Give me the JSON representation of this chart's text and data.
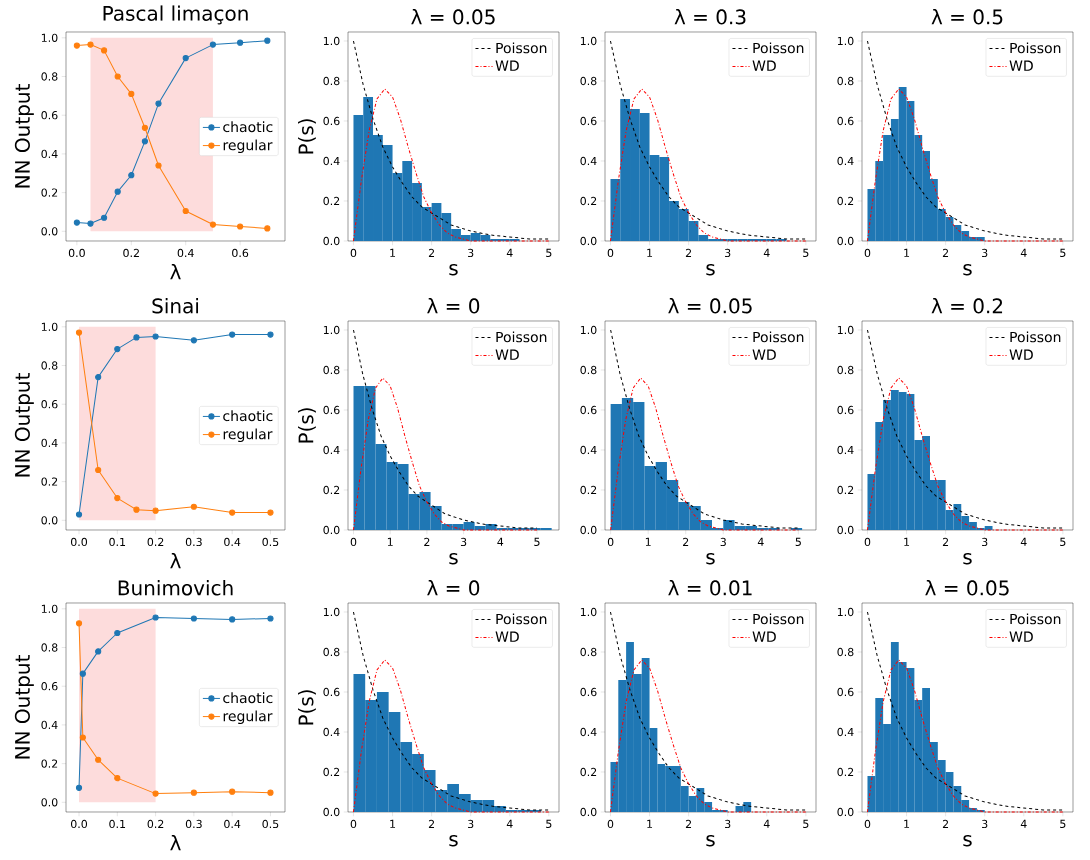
{
  "chart_data": [
    {
      "type": "line",
      "title": "Pascal limaçon",
      "xlabel": "λ",
      "ylabel": "NN Output",
      "x": [
        0,
        0.05,
        0.1,
        0.15,
        0.2,
        0.25,
        0.3,
        0.4,
        0.5,
        0.6,
        0.7
      ],
      "marker": "circle",
      "line_style": "solid",
      "legend": "center right",
      "series": [
        {
          "name": "chaotic",
          "color": "#1f77b4",
          "values": [
            0.045,
            0.04,
            0.07,
            0.205,
            0.29,
            0.465,
            0.66,
            0.895,
            0.965,
            0.975,
            0.985
          ]
        },
        {
          "name": "regular",
          "color": "#ff7f0e",
          "values": [
            0.96,
            0.965,
            0.935,
            0.8,
            0.71,
            0.535,
            0.34,
            0.105,
            0.035,
            0.025,
            0.015
          ]
        }
      ],
      "bands": [
        {
          "axis": "x",
          "from": 0.05,
          "to": 0.5,
          "color": "#fddcdc"
        }
      ],
      "xlim": [
        -0.04,
        0.765
      ],
      "ylim": [
        -0.05,
        1.03
      ],
      "xticks": [
        {
          "value": 0,
          "label": "0.0"
        },
        {
          "value": 0.2,
          "label": "0.2"
        },
        {
          "value": 0.4,
          "label": "0.4"
        },
        {
          "value": 0.6,
          "label": "0.6"
        }
      ],
      "yticks": [
        {
          "value": 0,
          "label": "0.0"
        },
        {
          "value": 0.2,
          "label": "0.2"
        },
        {
          "value": 0.4,
          "label": "0.4"
        },
        {
          "value": 0.6,
          "label": "0.6"
        },
        {
          "value": 0.8,
          "label": "0.8"
        },
        {
          "value": 1,
          "label": "1.0"
        }
      ]
    },
    {
      "type": "histogram",
      "title": "λ = 0.05",
      "xlabel": "s",
      "ylabel": "P(s)",
      "bins": [
        0,
        0.25,
        0.5,
        0.75,
        1,
        1.25,
        1.5,
        1.75,
        2,
        2.25,
        2.5,
        2.75,
        3,
        3.25,
        3.5,
        3.75,
        4,
        4.25
      ],
      "values": [
        0.63,
        0.72,
        0.53,
        0.48,
        0.34,
        0.4,
        0.29,
        0.17,
        0.19,
        0.14,
        0.06,
        0.03,
        0.04,
        0.03,
        0.01,
        0.01,
        0.01
      ],
      "color": "#1f77b4",
      "legend": "top right",
      "series": [
        {
          "type": "line",
          "name": "Poisson",
          "color": "#000000",
          "line_style": "dashed",
          "x": [
            0,
            0.25,
            0.5,
            0.75,
            1,
            1.25,
            1.5,
            1.75,
            2,
            2.5,
            3,
            3.5,
            4,
            4.5,
            5
          ],
          "values": [
            1,
            0.78,
            0.61,
            0.47,
            0.37,
            0.29,
            0.22,
            0.17,
            0.14,
            0.08,
            0.05,
            0.03,
            0.02,
            0.01,
            0.01
          ]
        },
        {
          "type": "line",
          "name": "WD",
          "color": "#ff0000",
          "line_style": "dashdot",
          "x": [
            0,
            0.2,
            0.4,
            0.6,
            0.8,
            1,
            1.2,
            1.4,
            1.6,
            1.8,
            2,
            2.2,
            2.4,
            2.6,
            2.8,
            3,
            3.5,
            4,
            5
          ],
          "values": [
            0,
            0.3,
            0.55,
            0.71,
            0.76,
            0.72,
            0.61,
            0.47,
            0.34,
            0.22,
            0.14,
            0.08,
            0.04,
            0.02,
            0.01,
            0,
            0,
            0,
            0
          ]
        }
      ],
      "xlim": [
        -0.14,
        5.26
      ],
      "ylim": [
        0,
        1.045
      ],
      "xticks": [
        0,
        1,
        2,
        3,
        4,
        5
      ],
      "yticks": [
        {
          "value": 0,
          "label": "0.0"
        },
        {
          "value": 0.2,
          "label": "0.2"
        },
        {
          "value": 0.4,
          "label": "0.4"
        },
        {
          "value": 0.6,
          "label": "0.6"
        },
        {
          "value": 0.8,
          "label": "0.8"
        },
        {
          "value": 1,
          "label": "1.0"
        }
      ]
    },
    {
      "type": "histogram",
      "title": "λ = 0.3",
      "xlabel": "s",
      "bins": [
        0,
        0.25,
        0.5,
        0.75,
        1,
        1.25,
        1.5,
        1.75,
        2,
        2.25,
        2.5,
        2.75,
        3,
        3.25,
        3.5,
        3.75,
        4,
        4.25,
        4.5
      ],
      "values": [
        0.31,
        0.71,
        0.66,
        0.64,
        0.43,
        0.42,
        0.2,
        0.16,
        0.1,
        0.03,
        0.01,
        0.01,
        0.01,
        0.01,
        0.01,
        0.01,
        0.01,
        0.01
      ],
      "color": "#1f77b4",
      "legend": "top right",
      "series": [
        {
          "type": "line",
          "name": "Poisson",
          "color": "#000000",
          "line_style": "dashed",
          "x": [
            0,
            0.25,
            0.5,
            0.75,
            1,
            1.25,
            1.5,
            1.75,
            2,
            2.5,
            3,
            3.5,
            4,
            4.5,
            5
          ],
          "values": [
            1,
            0.78,
            0.61,
            0.47,
            0.37,
            0.29,
            0.22,
            0.17,
            0.14,
            0.08,
            0.05,
            0.03,
            0.02,
            0.01,
            0.01
          ]
        },
        {
          "type": "line",
          "name": "WD",
          "color": "#ff0000",
          "line_style": "dashdot",
          "x": [
            0,
            0.2,
            0.4,
            0.6,
            0.8,
            1,
            1.2,
            1.4,
            1.6,
            1.8,
            2,
            2.2,
            2.4,
            2.6,
            2.8,
            3,
            3.5,
            4,
            5
          ],
          "values": [
            0,
            0.3,
            0.55,
            0.71,
            0.76,
            0.72,
            0.61,
            0.47,
            0.34,
            0.22,
            0.14,
            0.08,
            0.04,
            0.02,
            0.01,
            0,
            0,
            0,
            0
          ]
        }
      ],
      "xlim": [
        -0.14,
        5.26
      ],
      "ylim": [
        0,
        1.045
      ],
      "xticks": [
        0,
        1,
        2,
        3,
        4,
        5
      ],
      "yticks": [
        {
          "value": 0,
          "label": "0.0"
        },
        {
          "value": 0.2,
          "label": "0.2"
        },
        {
          "value": 0.4,
          "label": "0.4"
        },
        {
          "value": 0.6,
          "label": "0.6"
        },
        {
          "value": 0.8,
          "label": "0.8"
        },
        {
          "value": 1,
          "label": "1.0"
        }
      ]
    },
    {
      "type": "histogram",
      "title": "λ = 0.5",
      "xlabel": "s",
      "bins": [
        0,
        0.2,
        0.4,
        0.6,
        0.8,
        1,
        1.2,
        1.4,
        1.6,
        1.8,
        2,
        2.2,
        2.4,
        2.6,
        2.8,
        3
      ],
      "values": [
        0.26,
        0.4,
        0.53,
        0.61,
        0.77,
        0.7,
        0.53,
        0.45,
        0.31,
        0.16,
        0.12,
        0.08,
        0.05,
        0.02,
        0.02
      ],
      "color": "#1f77b4",
      "legend": "top right",
      "series": [
        {
          "type": "line",
          "name": "Poisson",
          "color": "#000000",
          "line_style": "dashed",
          "x": [
            0,
            0.25,
            0.5,
            0.75,
            1,
            1.25,
            1.5,
            1.75,
            2,
            2.5,
            3,
            3.5,
            4,
            4.5,
            5
          ],
          "values": [
            1,
            0.78,
            0.61,
            0.47,
            0.37,
            0.29,
            0.22,
            0.17,
            0.14,
            0.08,
            0.05,
            0.03,
            0.02,
            0.01,
            0.01
          ]
        },
        {
          "type": "line",
          "name": "WD",
          "color": "#ff0000",
          "line_style": "dashdot",
          "x": [
            0,
            0.2,
            0.4,
            0.6,
            0.8,
            1,
            1.2,
            1.4,
            1.6,
            1.8,
            2,
            2.2,
            2.4,
            2.6,
            2.8,
            3,
            3.5,
            4,
            5
          ],
          "values": [
            0,
            0.3,
            0.55,
            0.71,
            0.76,
            0.72,
            0.61,
            0.47,
            0.34,
            0.22,
            0.14,
            0.08,
            0.04,
            0.02,
            0.01,
            0,
            0,
            0,
            0
          ]
        }
      ],
      "xlim": [
        -0.14,
        5.26
      ],
      "ylim": [
        0,
        1.045
      ],
      "xticks": [
        0,
        1,
        2,
        3,
        4,
        5
      ],
      "yticks": [
        {
          "value": 0,
          "label": "0.0"
        },
        {
          "value": 0.2,
          "label": "0.2"
        },
        {
          "value": 0.4,
          "label": "0.4"
        },
        {
          "value": 0.6,
          "label": "0.6"
        },
        {
          "value": 0.8,
          "label": "0.8"
        },
        {
          "value": 1,
          "label": "1.0"
        }
      ]
    },
    {
      "type": "line",
      "title": "Sinai",
      "xlabel": "λ",
      "ylabel": "NN Output",
      "x": [
        0,
        0.05,
        0.1,
        0.15,
        0.2,
        0.3,
        0.4,
        0.5
      ],
      "marker": "circle",
      "line_style": "solid",
      "legend": "center right",
      "series": [
        {
          "name": "chaotic",
          "color": "#1f77b4",
          "values": [
            0.03,
            0.74,
            0.885,
            0.945,
            0.95,
            0.93,
            0.96,
            0.96
          ]
        },
        {
          "name": "regular",
          "color": "#ff7f0e",
          "values": [
            0.97,
            0.26,
            0.115,
            0.055,
            0.05,
            0.07,
            0.04,
            0.04
          ]
        }
      ],
      "bands": [
        {
          "axis": "x",
          "from": 0,
          "to": 0.2,
          "color": "#fddcdc"
        }
      ],
      "xlim": [
        -0.034,
        0.538
      ],
      "ylim": [
        -0.05,
        1.03
      ],
      "xticks": [
        {
          "value": 0,
          "label": "0.0"
        },
        {
          "value": 0.1,
          "label": "0.1"
        },
        {
          "value": 0.2,
          "label": "0.2"
        },
        {
          "value": 0.3,
          "label": "0.3"
        },
        {
          "value": 0.4,
          "label": "0.4"
        },
        {
          "value": 0.5,
          "label": "0.5"
        }
      ],
      "yticks": [
        {
          "value": 0,
          "label": "0.0"
        },
        {
          "value": 0.2,
          "label": "0.2"
        },
        {
          "value": 0.4,
          "label": "0.4"
        },
        {
          "value": 0.6,
          "label": "0.6"
        },
        {
          "value": 0.8,
          "label": "0.8"
        },
        {
          "value": 1,
          "label": "1.0"
        }
      ]
    },
    {
      "type": "histogram",
      "title": "λ = 0",
      "xlabel": "s",
      "ylabel": "P(s)",
      "bins": [
        0,
        0.3,
        0.6,
        0.9,
        1.2,
        1.5,
        1.8,
        2.1,
        2.4,
        2.7,
        3,
        3.3,
        3.6,
        3.9,
        4.2,
        4.5,
        4.8,
        5.1,
        5.4
      ],
      "values": [
        0.72,
        0.72,
        0.43,
        0.34,
        0.33,
        0.18,
        0.19,
        0.12,
        0.03,
        0.03,
        0.04,
        0.02,
        0.03,
        0.01,
        0.01,
        0.01,
        0.01,
        0.01
      ],
      "color": "#1f77b4",
      "legend": "top right",
      "series": [
        {
          "type": "line",
          "name": "Poisson",
          "color": "#000000",
          "line_style": "dashed",
          "x": [
            0,
            0.25,
            0.5,
            0.75,
            1,
            1.25,
            1.5,
            1.75,
            2,
            2.5,
            3,
            3.5,
            4,
            4.5,
            5
          ],
          "values": [
            1,
            0.78,
            0.61,
            0.47,
            0.37,
            0.29,
            0.22,
            0.17,
            0.14,
            0.08,
            0.05,
            0.03,
            0.02,
            0.01,
            0.01
          ]
        },
        {
          "type": "line",
          "name": "WD",
          "color": "#ff0000",
          "line_style": "dashdot",
          "x": [
            0,
            0.2,
            0.4,
            0.6,
            0.8,
            1,
            1.2,
            1.4,
            1.6,
            1.8,
            2,
            2.2,
            2.4,
            2.6,
            2.8,
            3,
            3.5,
            4,
            5
          ],
          "values": [
            0,
            0.3,
            0.55,
            0.71,
            0.76,
            0.72,
            0.61,
            0.47,
            0.34,
            0.22,
            0.14,
            0.08,
            0.04,
            0.02,
            0.01,
            0,
            0,
            0,
            0
          ]
        }
      ],
      "xlim": [
        -0.15,
        5.6
      ],
      "ylim": [
        0,
        1.045
      ],
      "xticks": [
        0,
        1,
        2,
        3,
        4,
        5
      ],
      "yticks": [
        {
          "value": 0,
          "label": "0.0"
        },
        {
          "value": 0.2,
          "label": "0.2"
        },
        {
          "value": 0.4,
          "label": "0.4"
        },
        {
          "value": 0.6,
          "label": "0.6"
        },
        {
          "value": 0.8,
          "label": "0.8"
        },
        {
          "value": 1,
          "label": "1.0"
        }
      ]
    },
    {
      "type": "histogram",
      "title": "λ = 0.05",
      "xlabel": "s",
      "bins": [
        0,
        0.3,
        0.6,
        0.9,
        1.2,
        1.5,
        1.8,
        2.1,
        2.4,
        2.7,
        3,
        3.3,
        3.6,
        3.9,
        4.2,
        4.5,
        4.8,
        5.1
      ],
      "values": [
        0.63,
        0.66,
        0.64,
        0.32,
        0.34,
        0.25,
        0.14,
        0.12,
        0.05,
        0.01,
        0.05,
        0.02,
        0.02,
        0.01,
        0.01,
        null,
        0.01
      ],
      "color": "#1f77b4",
      "legend": "top right",
      "series": [
        {
          "type": "line",
          "name": "Poisson",
          "color": "#000000",
          "line_style": "dashed",
          "x": [
            0,
            0.25,
            0.5,
            0.75,
            1,
            1.25,
            1.5,
            1.75,
            2,
            2.5,
            3,
            3.5,
            4,
            4.5,
            5
          ],
          "values": [
            1,
            0.78,
            0.61,
            0.47,
            0.37,
            0.29,
            0.22,
            0.17,
            0.14,
            0.08,
            0.05,
            0.03,
            0.02,
            0.01,
            0.01
          ]
        },
        {
          "type": "line",
          "name": "WD",
          "color": "#ff0000",
          "line_style": "dashdot",
          "x": [
            0,
            0.2,
            0.4,
            0.6,
            0.8,
            1,
            1.2,
            1.4,
            1.6,
            1.8,
            2,
            2.2,
            2.4,
            2.6,
            2.8,
            3,
            3.5,
            4,
            5
          ],
          "values": [
            0,
            0.3,
            0.55,
            0.71,
            0.76,
            0.72,
            0.61,
            0.47,
            0.34,
            0.22,
            0.14,
            0.08,
            0.04,
            0.02,
            0.01,
            0,
            0,
            0,
            0
          ]
        }
      ],
      "xlim": [
        -0.15,
        5.47
      ],
      "ylim": [
        0,
        1.045
      ],
      "xticks": [
        0,
        1,
        2,
        3,
        4,
        5
      ],
      "yticks": [
        {
          "value": 0,
          "label": "0.0"
        },
        {
          "value": 0.2,
          "label": "0.2"
        },
        {
          "value": 0.4,
          "label": "0.4"
        },
        {
          "value": 0.6,
          "label": "0.6"
        },
        {
          "value": 0.8,
          "label": "0.8"
        },
        {
          "value": 1,
          "label": "1.0"
        }
      ]
    },
    {
      "type": "histogram",
      "title": "λ = 0.2",
      "xlabel": "s",
      "bins": [
        0,
        0.2,
        0.4,
        0.6,
        0.8,
        1,
        1.2,
        1.4,
        1.6,
        1.8,
        2,
        2.2,
        2.4,
        2.6,
        2.8,
        3,
        3.2
      ],
      "values": [
        0.28,
        0.54,
        0.65,
        0.7,
        0.69,
        0.68,
        0.45,
        0.47,
        0.25,
        0.25,
        0.1,
        0.13,
        0.07,
        0.04,
        0.01,
        0.02
      ],
      "color": "#1f77b4",
      "legend": "top right",
      "series": [
        {
          "type": "line",
          "name": "Poisson",
          "color": "#000000",
          "line_style": "dashed",
          "x": [
            0,
            0.25,
            0.5,
            0.75,
            1,
            1.25,
            1.5,
            1.75,
            2,
            2.5,
            3,
            3.5,
            4,
            4.5,
            5
          ],
          "values": [
            1,
            0.78,
            0.61,
            0.47,
            0.37,
            0.29,
            0.22,
            0.17,
            0.14,
            0.08,
            0.05,
            0.03,
            0.02,
            0.01,
            0.01
          ]
        },
        {
          "type": "line",
          "name": "WD",
          "color": "#ff0000",
          "line_style": "dashdot",
          "x": [
            0,
            0.2,
            0.4,
            0.6,
            0.8,
            1,
            1.2,
            1.4,
            1.6,
            1.8,
            2,
            2.2,
            2.4,
            2.6,
            2.8,
            3,
            3.5,
            4,
            5
          ],
          "values": [
            0,
            0.3,
            0.55,
            0.71,
            0.76,
            0.72,
            0.61,
            0.47,
            0.34,
            0.22,
            0.14,
            0.08,
            0.04,
            0.02,
            0.01,
            0,
            0,
            0,
            0
          ]
        }
      ],
      "xlim": [
        -0.14,
        5.26
      ],
      "ylim": [
        0,
        1.045
      ],
      "xticks": [
        0,
        1,
        2,
        3,
        4,
        5
      ],
      "yticks": [
        {
          "value": 0,
          "label": "0.0"
        },
        {
          "value": 0.2,
          "label": "0.2"
        },
        {
          "value": 0.4,
          "label": "0.4"
        },
        {
          "value": 0.6,
          "label": "0.6"
        },
        {
          "value": 0.8,
          "label": "0.8"
        },
        {
          "value": 1,
          "label": "1.0"
        }
      ]
    },
    {
      "type": "line",
      "title": "Bunimovich",
      "xlabel": "λ",
      "ylabel": "NN Output",
      "x": [
        0,
        0.01,
        0.05,
        0.1,
        0.2,
        0.3,
        0.4,
        0.5
      ],
      "marker": "circle",
      "line_style": "solid",
      "legend": "center right",
      "series": [
        {
          "name": "chaotic",
          "color": "#1f77b4",
          "values": [
            0.075,
            0.665,
            0.78,
            0.875,
            0.955,
            0.95,
            0.945,
            0.95
          ]
        },
        {
          "name": "regular",
          "color": "#ff7f0e",
          "values": [
            0.925,
            0.335,
            0.22,
            0.125,
            0.045,
            0.05,
            0.055,
            0.05
          ]
        }
      ],
      "bands": [
        {
          "axis": "x",
          "from": 0,
          "to": 0.2,
          "color": "#fddcdc"
        }
      ],
      "xlim": [
        -0.034,
        0.538
      ],
      "ylim": [
        -0.05,
        1.03
      ],
      "xticks": [
        {
          "value": 0,
          "label": "0.0"
        },
        {
          "value": 0.1,
          "label": "0.1"
        },
        {
          "value": 0.2,
          "label": "0.2"
        },
        {
          "value": 0.3,
          "label": "0.3"
        },
        {
          "value": 0.4,
          "label": "0.4"
        },
        {
          "value": 0.5,
          "label": "0.5"
        }
      ],
      "yticks": [
        {
          "value": 0,
          "label": "0.0"
        },
        {
          "value": 0.2,
          "label": "0.2"
        },
        {
          "value": 0.4,
          "label": "0.4"
        },
        {
          "value": 0.6,
          "label": "0.6"
        },
        {
          "value": 0.8,
          "label": "0.8"
        },
        {
          "value": 1,
          "label": "1.0"
        }
      ]
    },
    {
      "type": "histogram",
      "title": "λ = 0",
      "xlabel": "s",
      "ylabel": "P(s)",
      "bins": [
        0,
        0.3,
        0.6,
        0.9,
        1.2,
        1.5,
        1.8,
        2.1,
        2.4,
        2.7,
        3,
        3.3,
        3.6,
        3.9,
        4.2,
        4.5,
        4.8
      ],
      "values": [
        0.69,
        0.56,
        0.6,
        0.5,
        0.35,
        0.29,
        0.21,
        0.11,
        0.14,
        0.09,
        0.06,
        0.06,
        0.03,
        0.01,
        0.01,
        0.01
      ],
      "color": "#1f77b4",
      "legend": "top right",
      "series": [
        {
          "type": "line",
          "name": "Poisson",
          "color": "#000000",
          "line_style": "dashed",
          "x": [
            0,
            0.25,
            0.5,
            0.75,
            1,
            1.25,
            1.5,
            1.75,
            2,
            2.5,
            3,
            3.5,
            4,
            4.5,
            5
          ],
          "values": [
            1,
            0.78,
            0.61,
            0.47,
            0.37,
            0.29,
            0.22,
            0.17,
            0.14,
            0.08,
            0.05,
            0.03,
            0.02,
            0.01,
            0.01
          ]
        },
        {
          "type": "line",
          "name": "WD",
          "color": "#ff0000",
          "line_style": "dashdot",
          "x": [
            0,
            0.2,
            0.4,
            0.6,
            0.8,
            1,
            1.2,
            1.4,
            1.6,
            1.8,
            2,
            2.2,
            2.4,
            2.6,
            2.8,
            3,
            3.5,
            4,
            5
          ],
          "values": [
            0,
            0.3,
            0.55,
            0.71,
            0.76,
            0.72,
            0.61,
            0.47,
            0.34,
            0.22,
            0.14,
            0.08,
            0.04,
            0.02,
            0.01,
            0,
            0,
            0,
            0
          ]
        }
      ],
      "xlim": [
        -0.14,
        5.26
      ],
      "ylim": [
        0,
        1.045
      ],
      "xticks": [
        0,
        1,
        2,
        3,
        4,
        5
      ],
      "yticks": [
        {
          "value": 0,
          "label": "0.0"
        },
        {
          "value": 0.2,
          "label": "0.2"
        },
        {
          "value": 0.4,
          "label": "0.4"
        },
        {
          "value": 0.6,
          "label": "0.6"
        },
        {
          "value": 0.8,
          "label": "0.8"
        },
        {
          "value": 1,
          "label": "1.0"
        }
      ]
    },
    {
      "type": "histogram",
      "title": "λ = 0.01",
      "xlabel": "s",
      "bins": [
        0,
        0.2,
        0.4,
        0.6,
        0.8,
        1,
        1.2,
        1.4,
        1.6,
        1.8,
        2,
        2.2,
        2.4,
        2.6,
        2.8,
        3,
        3.2,
        3.4,
        3.6
      ],
      "values": [
        0.25,
        0.66,
        0.85,
        0.69,
        0.77,
        0.42,
        0.24,
        0.23,
        0.23,
        0.13,
        0.08,
        0.12,
        0.05,
        0.01,
        0.01,
        0,
        0.03,
        0.05
      ],
      "color": "#1f77b4",
      "legend": "top right",
      "series": [
        {
          "type": "line",
          "name": "Poisson",
          "color": "#000000",
          "line_style": "dashed",
          "x": [
            0,
            0.25,
            0.5,
            0.75,
            1,
            1.25,
            1.5,
            1.75,
            2,
            2.5,
            3,
            3.5,
            4,
            4.5,
            5
          ],
          "values": [
            1,
            0.78,
            0.61,
            0.47,
            0.37,
            0.29,
            0.22,
            0.17,
            0.14,
            0.08,
            0.05,
            0.03,
            0.02,
            0.01,
            0.01
          ]
        },
        {
          "type": "line",
          "name": "WD",
          "color": "#ff0000",
          "line_style": "dashdot",
          "x": [
            0,
            0.2,
            0.4,
            0.6,
            0.8,
            1,
            1.2,
            1.4,
            1.6,
            1.8,
            2,
            2.2,
            2.4,
            2.6,
            2.8,
            3,
            3.5,
            4,
            5
          ],
          "values": [
            0,
            0.3,
            0.55,
            0.71,
            0.76,
            0.72,
            0.61,
            0.47,
            0.34,
            0.22,
            0.14,
            0.08,
            0.04,
            0.02,
            0.01,
            0,
            0,
            0,
            0
          ]
        }
      ],
      "xlim": [
        -0.14,
        5.26
      ],
      "ylim": [
        0,
        1.045
      ],
      "xticks": [
        0,
        1,
        2,
        3,
        4,
        5
      ],
      "yticks": [
        {
          "value": 0,
          "label": "0.0"
        },
        {
          "value": 0.2,
          "label": "0.2"
        },
        {
          "value": 0.4,
          "label": "0.4"
        },
        {
          "value": 0.6,
          "label": "0.6"
        },
        {
          "value": 0.8,
          "label": "0.8"
        },
        {
          "value": 1,
          "label": "1.0"
        }
      ]
    },
    {
      "type": "histogram",
      "title": "λ = 0.05",
      "xlabel": "s",
      "bins": [
        0,
        0.2,
        0.4,
        0.6,
        0.8,
        1,
        1.2,
        1.4,
        1.6,
        1.8,
        2,
        2.2,
        2.4,
        2.6,
        2.8,
        3
      ],
      "values": [
        0.18,
        0.57,
        0.44,
        0.85,
        0.75,
        0.72,
        0.56,
        0.62,
        0.35,
        0.26,
        0.2,
        0.13,
        0.06,
        0.02,
        0.01
      ],
      "color": "#1f77b4",
      "legend": "top right",
      "series": [
        {
          "type": "line",
          "name": "Poisson",
          "color": "#000000",
          "line_style": "dashed",
          "x": [
            0,
            0.25,
            0.5,
            0.75,
            1,
            1.25,
            1.5,
            1.75,
            2,
            2.5,
            3,
            3.5,
            4,
            4.5,
            5
          ],
          "values": [
            1,
            0.78,
            0.61,
            0.47,
            0.37,
            0.29,
            0.22,
            0.17,
            0.14,
            0.08,
            0.05,
            0.03,
            0.02,
            0.01,
            0.01
          ]
        },
        {
          "type": "line",
          "name": "WD",
          "color": "#ff0000",
          "line_style": "dashdot",
          "x": [
            0,
            0.2,
            0.4,
            0.6,
            0.8,
            1,
            1.2,
            1.4,
            1.6,
            1.8,
            2,
            2.2,
            2.4,
            2.6,
            2.8,
            3,
            3.5,
            4,
            5
          ],
          "values": [
            0,
            0.3,
            0.55,
            0.71,
            0.76,
            0.72,
            0.61,
            0.47,
            0.34,
            0.22,
            0.14,
            0.08,
            0.04,
            0.02,
            0.01,
            0,
            0,
            0,
            0
          ]
        }
      ],
      "xlim": [
        -0.14,
        5.26
      ],
      "ylim": [
        0,
        1.045
      ],
      "xticks": [
        0,
        1,
        2,
        3,
        4,
        5
      ],
      "yticks": [
        {
          "value": 0,
          "label": "0.0"
        },
        {
          "value": 0.2,
          "label": "0.2"
        },
        {
          "value": 0.4,
          "label": "0.4"
        },
        {
          "value": 0.6,
          "label": "0.6"
        },
        {
          "value": 0.8,
          "label": "0.8"
        },
        {
          "value": 1,
          "label": "1.0"
        }
      ]
    }
  ]
}
